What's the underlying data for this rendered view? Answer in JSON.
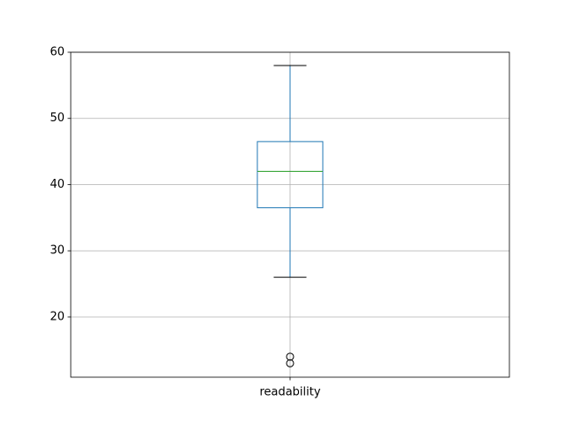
{
  "chart_data": {
    "type": "box",
    "categories": [
      "readability"
    ],
    "boxes": [
      {
        "whislo": 26,
        "q1": 36.5,
        "med": 42,
        "q3": 46.5,
        "whishi": 58,
        "fliers": [
          14,
          13
        ]
      }
    ],
    "box_color": "#1f77b4",
    "median_color": "#2ca02c",
    "whisker_color": "#1f77b4",
    "cap_color": "#000000",
    "ylim": [
      10.9,
      60
    ],
    "yticks": [
      20,
      30,
      40,
      50,
      60
    ],
    "grid": true
  }
}
